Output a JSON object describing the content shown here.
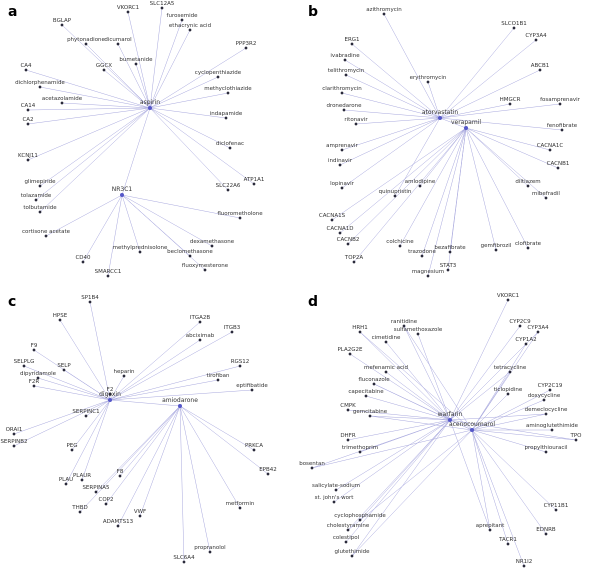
{
  "panels": [
    {
      "label": "a",
      "hubs": [
        "aspirin",
        "NR3C1"
      ],
      "nodes": [
        "BGLAP",
        "VKORC1",
        "SLC12A5",
        "furosemide",
        "ethacrynic acid",
        "phytonadione",
        "dicumarol",
        "GGCX",
        "bumetanide",
        "PPP3R2",
        "cyclopenthiazide",
        "methyclothiazide",
        "indapamide",
        "diclofenac",
        "SLC22A6",
        "ATP1A1",
        "CA4",
        "dichlorphenamide",
        "CA14",
        "CA2",
        "acetazolamide",
        "KCNJ11",
        "glimepiride",
        "tolazamide",
        "tolbutamide",
        "cortisone acetate",
        "fluorometholone",
        "dexamethasone",
        "beclomethasone",
        "methylprednisolone",
        "CD40",
        "SMARCC1",
        "fluoxymesterone"
      ]
    },
    {
      "label": "b",
      "hubs": [
        "atorvastatin",
        "verapamil"
      ],
      "nodes": [
        "azithromycin",
        "erythromycin",
        "ERG1",
        "ivabradine",
        "telithromycin",
        "clarithromycin",
        "dronedarone",
        "amprenavir",
        "indinavir",
        "ritonavir",
        "lopinavir",
        "quinupristin",
        "amlodipine",
        "CACNA1S",
        "CACNA1D",
        "CACNB2",
        "TOP2A",
        "colchicine",
        "trazodone",
        "magnesium",
        "STAT3",
        "bezafibrate",
        "gemfibrozil",
        "clofibrate",
        "HMGCR",
        "fosamprenavir",
        "fenofibrate",
        "CACNA1C",
        "CACNB1",
        "diltiazem",
        "mibefradil",
        "SLCO1B1",
        "CYP3A4",
        "ABCB1"
      ]
    },
    {
      "label": "c",
      "hubs": [
        "digoxin",
        "amiodarone"
      ],
      "nodes": [
        "SP1B4",
        "HPSE",
        "F9",
        "SELPLG",
        "SELP",
        "dipyridamole",
        "F2R",
        "heparin",
        "F2",
        "SERPINC1",
        "ORAI1",
        "SERPINB2",
        "PEG",
        "PLAUR",
        "PLAU",
        "THBD",
        "COP2",
        "ADAMTS13",
        "VWF",
        "F8",
        "SERPINA5",
        "ITGA2B",
        "abciximab",
        "ITGB3",
        "RGS12",
        "tirofiban",
        "eptifibatide",
        "PRKCA",
        "EPB42",
        "metformin",
        "propranolol",
        "SLC6A4"
      ]
    },
    {
      "label": "d",
      "hubs": [
        "warfarin",
        "acenocoumarol"
      ],
      "nodes": [
        "HRH1",
        "PLA2G2E",
        "cimetidine",
        "ranitidine",
        "sulfamethoxazole",
        "mefenamic acid",
        "fluconazole",
        "capecitabine",
        "CMPK",
        "gemcitabine",
        "DHFR",
        "trimethoprim",
        "bosentan",
        "salicylate-sodium",
        "st. john's wort",
        "cholestyramine",
        "colestipol",
        "cyclophosphamide",
        "glutethimide",
        "VKORC1",
        "CYP2C9",
        "CYP3A4",
        "CYP1A2",
        "CYP2C19",
        "tetracycline",
        "ticlopidine",
        "doxycycline",
        "demeclocycline",
        "aminoglutethimide",
        "propylthiouracil",
        "TPO",
        "CYP11B1",
        "TACR1",
        "aprepitant",
        "EDNRB",
        "NR1I2"
      ]
    }
  ]
}
